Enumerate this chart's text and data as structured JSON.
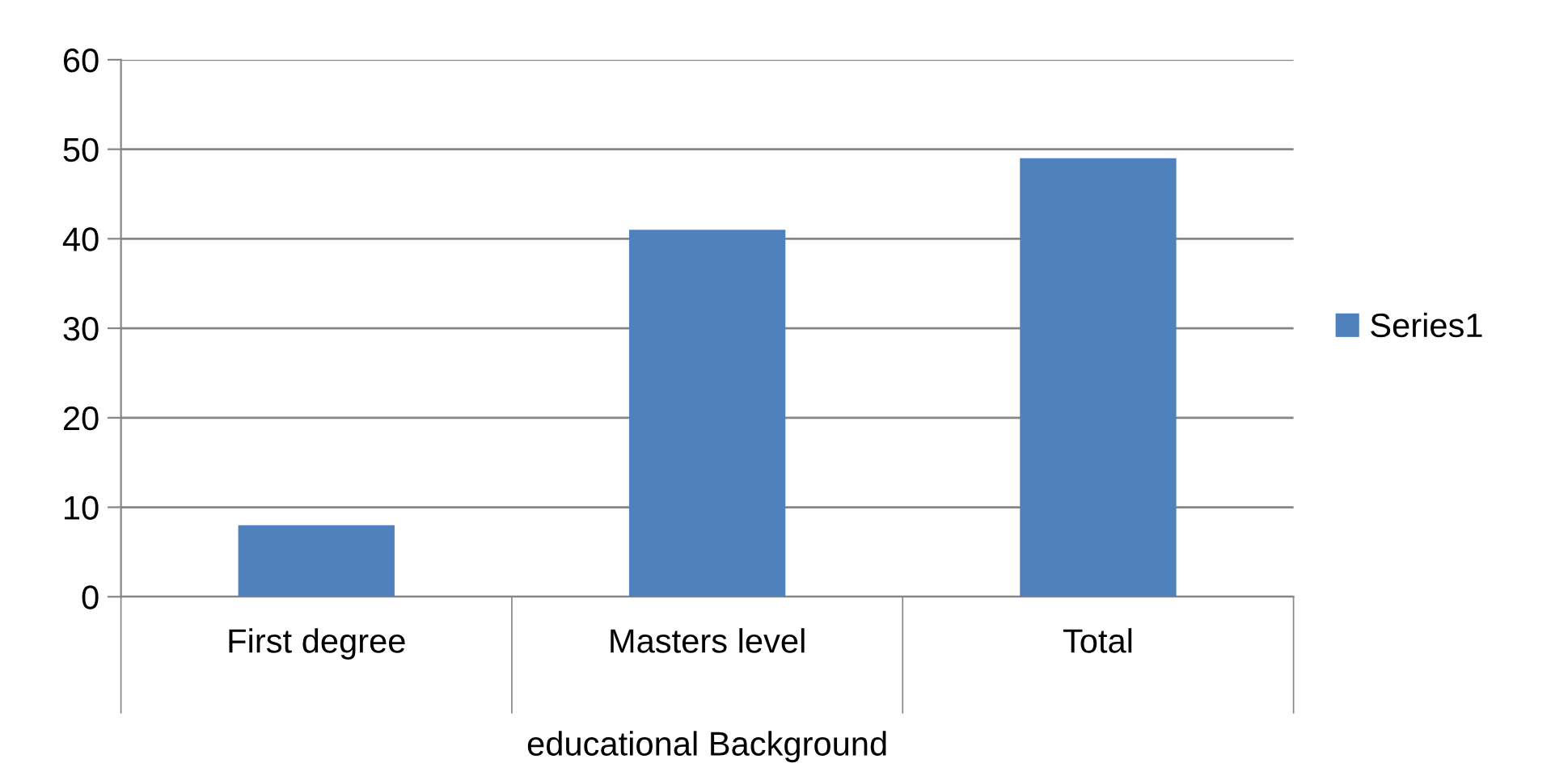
{
  "chart_data": {
    "type": "bar",
    "xlabel": "educational Background",
    "categories": [
      "First degree",
      "Masters level",
      "Total"
    ],
    "series": [
      {
        "name": "Series1",
        "color": "#4f81bd",
        "values": [
          8,
          41,
          49
        ]
      }
    ],
    "ylim": [
      0,
      60
    ],
    "yticks": [
      0,
      10,
      20,
      30,
      40,
      50,
      60
    ],
    "grid": "y",
    "legend": "right"
  }
}
